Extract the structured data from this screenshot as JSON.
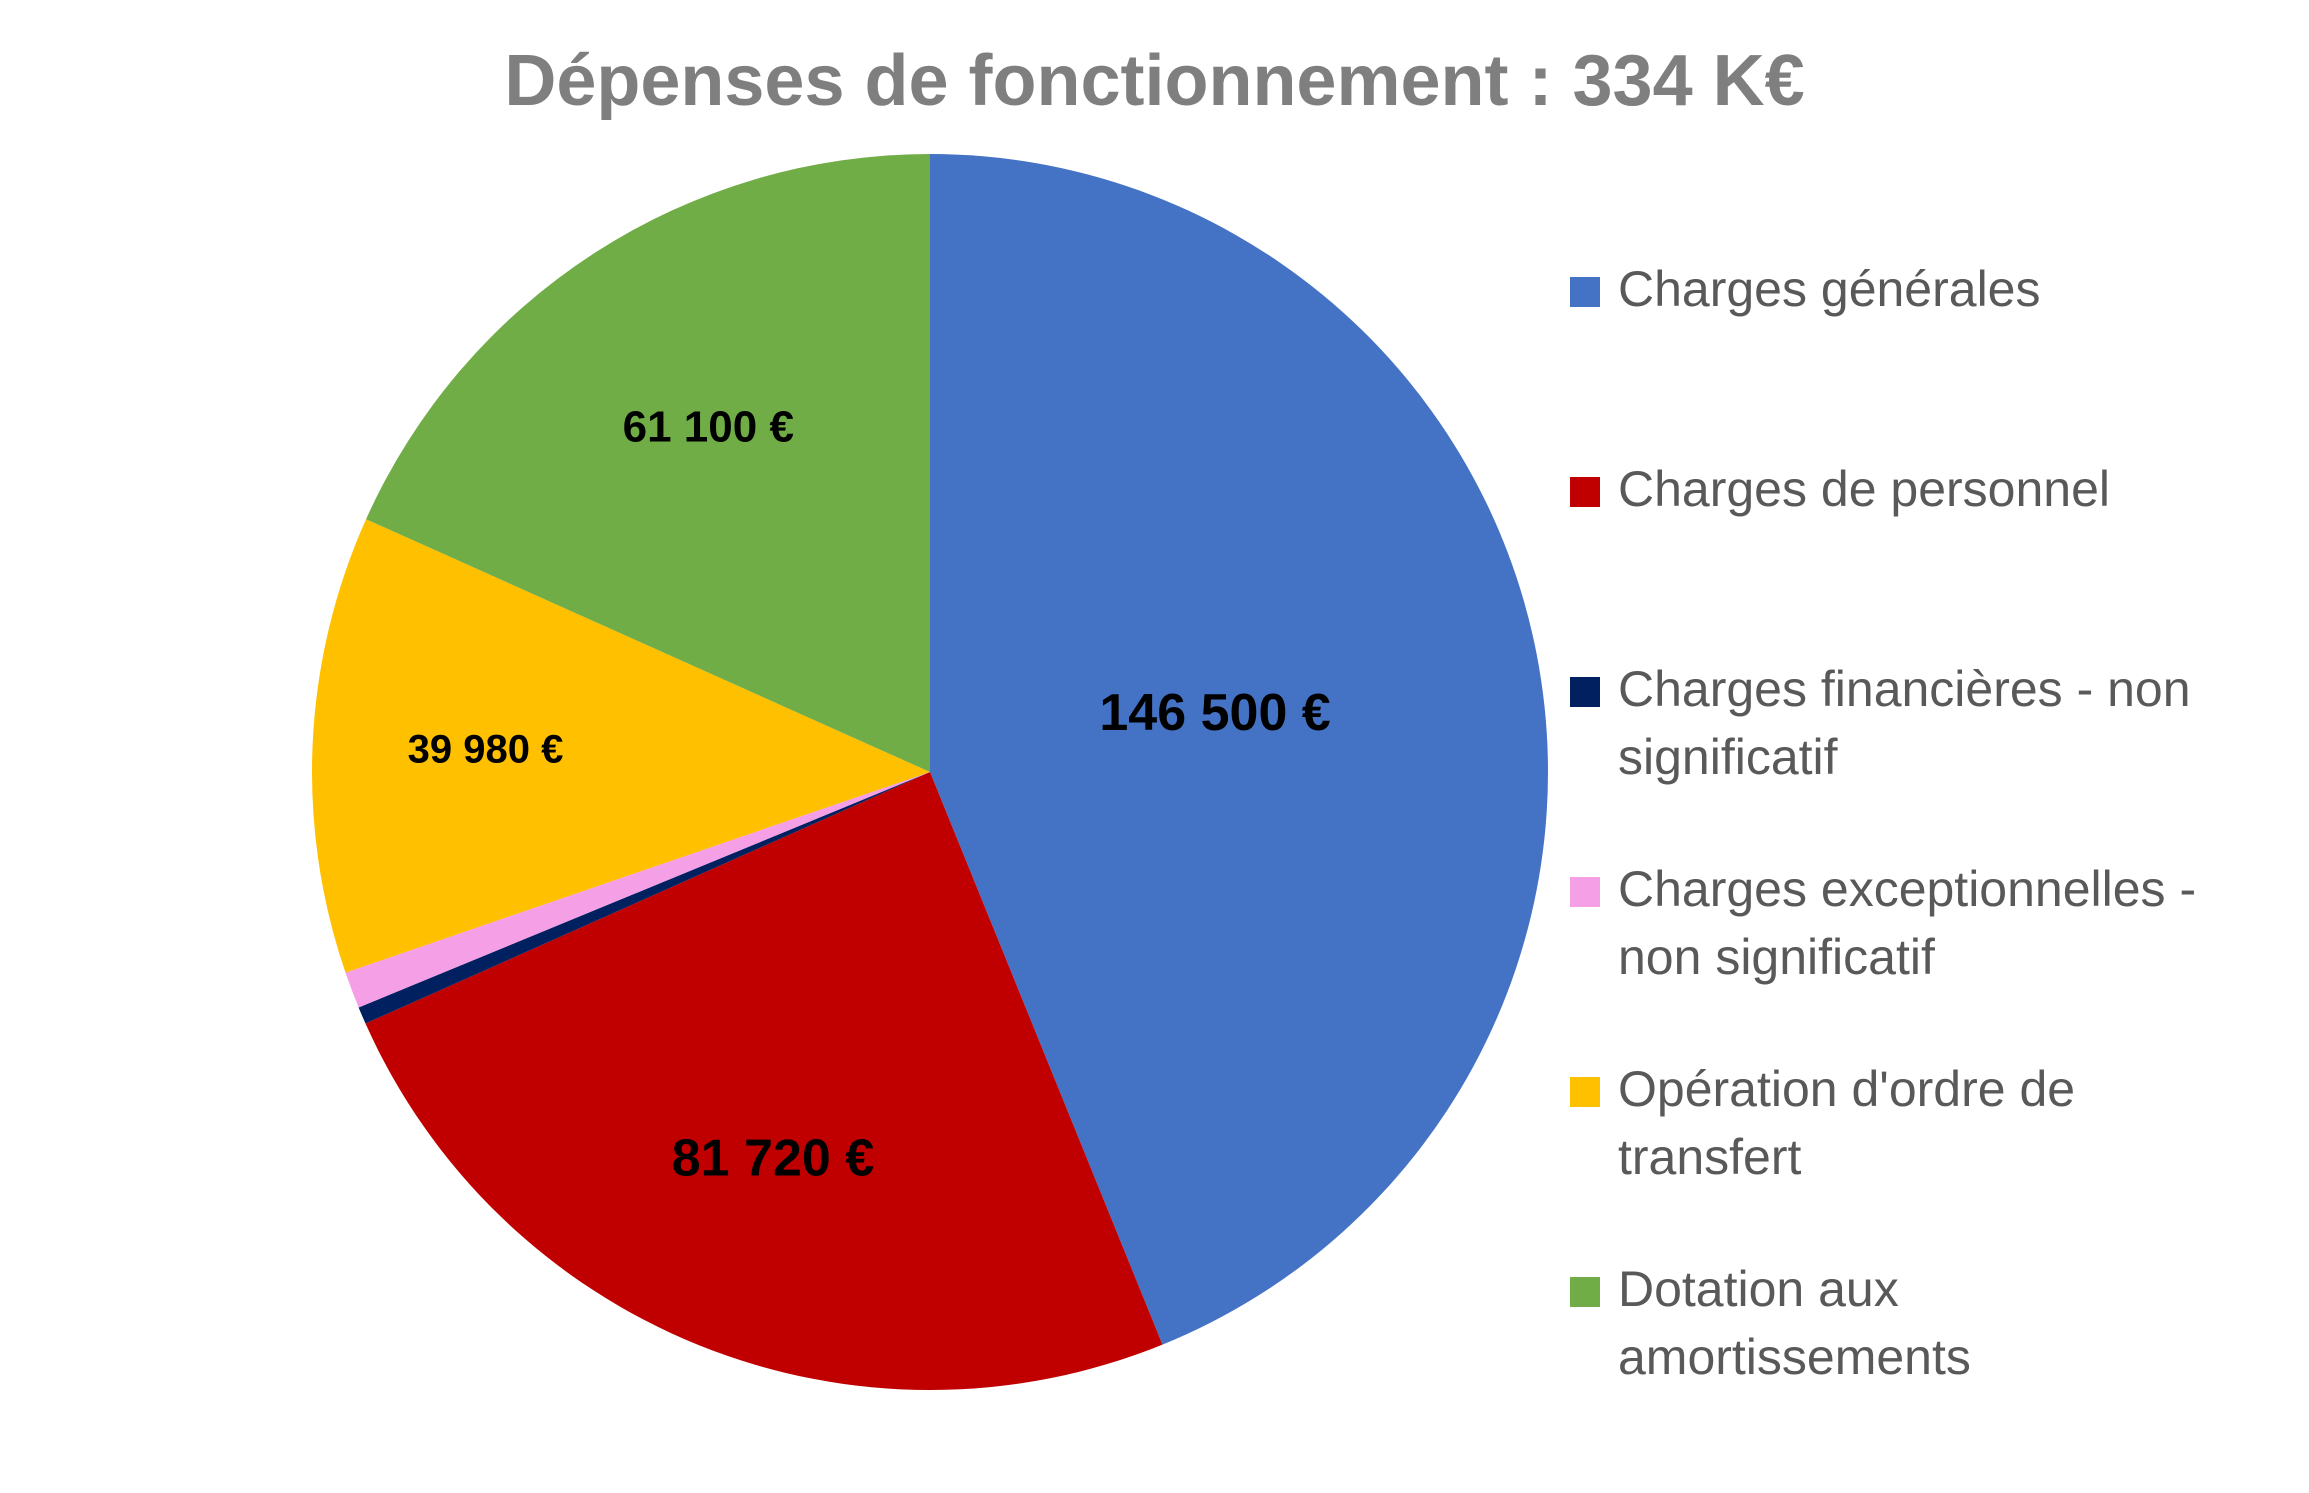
{
  "chart_data": {
    "type": "pie",
    "title": "Dépenses de fonctionnement : 334 K€",
    "legend_position": "right",
    "series": [
      {
        "label": "Charges générales",
        "value": 146500,
        "data_label": "146 500 €",
        "color": "#4472C4"
      },
      {
        "label": "Charges de personnel",
        "value": 81720,
        "data_label": "81 720 €",
        "color": "#C00000"
      },
      {
        "label": "Charges financières - non significatif",
        "value": 1500,
        "data_label": "",
        "color": "#002060"
      },
      {
        "label": "Charges exceptionnelles - non significatif",
        "value": 3200,
        "data_label": "",
        "color": "#F59FE6"
      },
      {
        "label": "Opération d'ordre de transfert",
        "value": 39980,
        "data_label": "39 980 €",
        "color": "#FFC000"
      },
      {
        "label": "Dotation aux amortissements",
        "value": 61100,
        "data_label": "61 100 €",
        "color": "#70AD47"
      }
    ]
  }
}
